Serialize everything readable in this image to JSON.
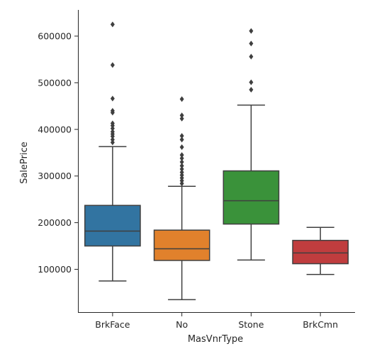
{
  "chart_data": {
    "type": "box",
    "xlabel": "MasVnrType",
    "ylabel": "SalePrice",
    "ylim": [
      0,
      650000
    ],
    "yticks": [
      100000,
      200000,
      300000,
      400000,
      500000,
      600000
    ],
    "ytick_labels": [
      "100000",
      "200000",
      "300000",
      "400000",
      "500000",
      "600000"
    ],
    "grid": false,
    "categories": [
      "BrkFace",
      "No",
      "Stone",
      "BrkCmn"
    ],
    "boxes": [
      {
        "category": "BrkFace",
        "color": "#3274a1",
        "q1": 150000,
        "median": 182000,
        "q3": 237000,
        "whisker_low": 75000,
        "whisker_high": 363000,
        "outliers": [
          625000,
          538000,
          466000,
          440000,
          436000,
          413000,
          408000,
          402000,
          395000,
          390000,
          385000,
          378000,
          372000
        ]
      },
      {
        "category": "No",
        "color": "#e1812c",
        "q1": 119000,
        "median": 144000,
        "q3": 184000,
        "whisker_low": 35000,
        "whisker_high": 278000,
        "outliers": [
          465000,
          430000,
          423000,
          386000,
          378000,
          362000,
          345000,
          338000,
          330000,
          322000,
          315000,
          308000,
          302000,
          296000,
          290000,
          284000
        ]
      },
      {
        "category": "Stone",
        "color": "#3a923a",
        "q1": 197000,
        "median": 247000,
        "q3": 311000,
        "whisker_low": 120000,
        "whisker_high": 452000,
        "outliers": [
          611000,
          584000,
          556000,
          501000,
          485000
        ]
      },
      {
        "category": "BrkCmn",
        "color": "#c03d3e",
        "q1": 112000,
        "median": 135000,
        "q3": 162000,
        "whisker_low": 89000,
        "whisker_high": 190000,
        "outliers": []
      }
    ]
  }
}
